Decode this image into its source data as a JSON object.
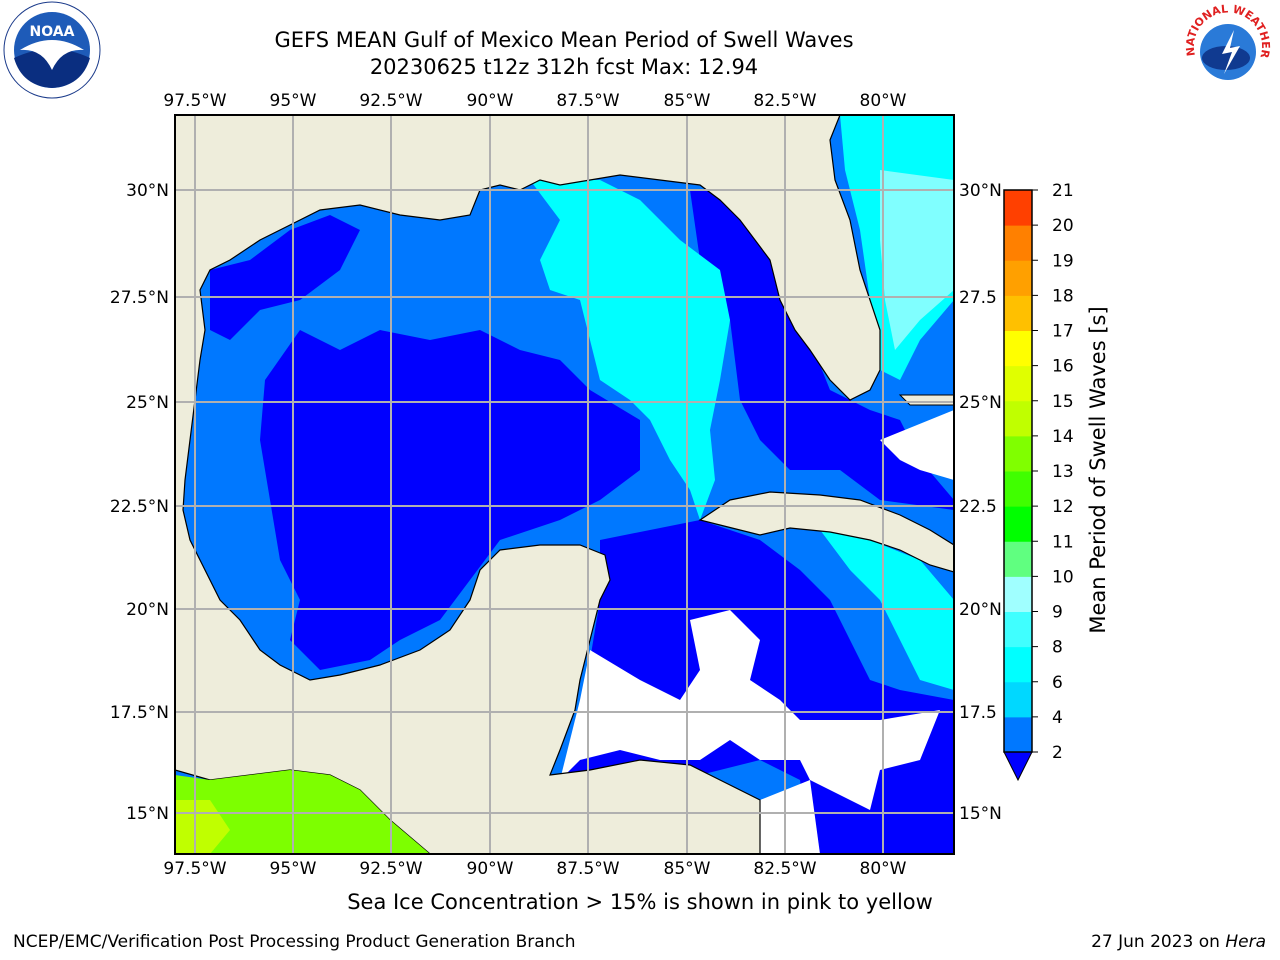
{
  "header": {
    "title_line1": "GEFS MEAN Gulf of Mexico Mean Period of Swell Waves",
    "title_line2": "20230625 t12z 312h fcst   Max: 12.94"
  },
  "logos": {
    "left": "noaa-logo",
    "right": "national-weather-service-logo",
    "left_text": "NOAA",
    "right_text": "NATIONAL WEATHER SERVICE"
  },
  "map": {
    "lon_ticks": [
      "97.5°W",
      "95°W",
      "92.5°W",
      "90°W",
      "87.5°W",
      "85°W",
      "82.5°W",
      "80°W"
    ],
    "lat_ticks_left": [
      "30°N",
      "27.5°N",
      "25°N",
      "22.5°N",
      "20°N",
      "17.5°N",
      "15°N"
    ],
    "lat_ticks_right": [
      "30°N",
      "27.5",
      "25°N",
      "22.5",
      "20°N",
      "17.5",
      "15°N"
    ],
    "colors": {
      "land": "#eeeddb",
      "ocean_dark": "#0000ff",
      "ocean_mid": "#0078ff",
      "ocean_cyan": "#00ffff",
      "ocean_light": "#80ffff",
      "pacific_green": "#7dff00",
      "grid": "#b0b0b0"
    }
  },
  "colorbar": {
    "label": "Mean Period of Swell Waves [s]",
    "ticks": [
      "2",
      "4",
      "6",
      "8",
      "9",
      "10",
      "11",
      "12",
      "13",
      "14",
      "15",
      "16",
      "17",
      "18",
      "19",
      "20",
      "21"
    ],
    "colors": [
      "#0078ff",
      "#00d8ff",
      "#00ffff",
      "#40ffff",
      "#a0ffff",
      "#60ff80",
      "#00ff00",
      "#40ff00",
      "#80ff00",
      "#c0ff00",
      "#e0ff00",
      "#ffff00",
      "#ffc000",
      "#ffa000",
      "#ff8000",
      "#ff4000",
      "#ff0000"
    ]
  },
  "note": "Sea Ice Concentration > 15% is shown in pink to yellow",
  "footer": {
    "left": "NCEP/EMC/Verification Post Processing Product Generation Branch",
    "date": "27 Jun 2023 on ",
    "machine": "Hera"
  }
}
